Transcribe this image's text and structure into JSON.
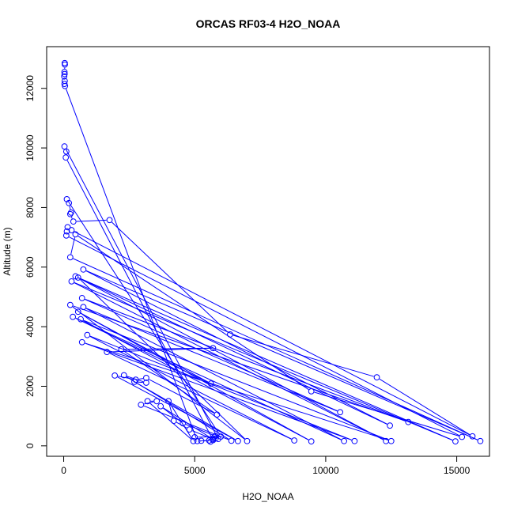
{
  "chart_data": {
    "type": "line",
    "title": "ORCAS RF03-4 H2O_NOAA",
    "xlabel": "H2O_NOAA",
    "ylabel": "Altitude (m)",
    "xlim": [
      -650,
      16250
    ],
    "ylim": [
      -350,
      13400
    ],
    "x_ticks": [
      0,
      5000,
      10000,
      15000
    ],
    "y_ticks": [
      0,
      2000,
      4000,
      6000,
      8000,
      10000,
      12000
    ],
    "x_tick_labels": [
      "0",
      "5000",
      "10000",
      "15000"
    ],
    "y_tick_labels": [
      "0",
      "2000",
      "4000",
      "6000",
      "8000",
      "10000",
      "12000"
    ],
    "grid": false,
    "marker": "open-circle",
    "series": [
      {
        "color": "#0000ff",
        "points": [
          [
            40,
            12850
          ],
          [
            45,
            12800
          ],
          [
            30,
            12550
          ],
          [
            35,
            12480
          ],
          [
            20,
            12400
          ],
          [
            40,
            12250
          ],
          [
            30,
            12150
          ],
          [
            50,
            12080
          ],
          [
            5100,
            160
          ],
          [
            5550,
            180
          ],
          [
            5600,
            140
          ],
          [
            5900,
            230
          ],
          [
            30,
            10050
          ],
          [
            100,
            9880
          ],
          [
            80,
            9680
          ],
          [
            5700,
            190
          ],
          [
            5250,
            170
          ],
          [
            5000,
            290
          ],
          [
            6000,
            310
          ],
          [
            120,
            8280
          ],
          [
            200,
            8150
          ],
          [
            280,
            7830
          ],
          [
            250,
            7780
          ],
          [
            370,
            7530
          ],
          [
            1750,
            7580
          ],
          [
            6350,
            3740
          ],
          [
            11950,
            2300
          ],
          [
            15600,
            320
          ],
          [
            300,
            7240
          ],
          [
            150,
            7340
          ],
          [
            120,
            7200
          ],
          [
            100,
            7060
          ],
          [
            15200,
            300
          ],
          [
            9450,
            1830
          ],
          [
            450,
            7100
          ],
          [
            250,
            6330
          ],
          [
            15900,
            160
          ],
          [
            750,
            5920
          ],
          [
            12450,
            680
          ],
          [
            450,
            5690
          ],
          [
            12300,
            160
          ],
          [
            300,
            5520
          ],
          [
            14950,
            150
          ],
          [
            550,
            5650
          ],
          [
            7000,
            160
          ],
          [
            250,
            4730
          ],
          [
            13150,
            800
          ],
          [
            700,
            4960
          ],
          [
            10550,
            1130
          ],
          [
            750,
            4660
          ],
          [
            10700,
            160
          ],
          [
            350,
            4330
          ],
          [
            5620,
            2090
          ],
          [
            550,
            4500
          ],
          [
            9450,
            150
          ],
          [
            650,
            4250
          ],
          [
            12500,
            160
          ],
          [
            700,
            3480
          ],
          [
            11100,
            160
          ],
          [
            900,
            3720
          ],
          [
            8800,
            180
          ],
          [
            1650,
            3150
          ],
          [
            5700,
            3280
          ],
          [
            2200,
            3240
          ],
          [
            5850,
            1050
          ],
          [
            3150,
            2280
          ],
          [
            2750,
            2220
          ],
          [
            1950,
            2360
          ],
          [
            6650,
            160
          ],
          [
            2700,
            2150
          ],
          [
            3150,
            2120
          ],
          [
            2300,
            2370
          ],
          [
            6400,
            170
          ],
          [
            2950,
            1380
          ],
          [
            3550,
            1500
          ],
          [
            3200,
            1500
          ],
          [
            4950,
            160
          ],
          [
            4000,
            1500
          ],
          [
            4200,
            840
          ],
          [
            4800,
            550
          ],
          [
            5700,
            220
          ],
          [
            3700,
            1330
          ],
          [
            4550,
            760
          ],
          [
            5800,
            330
          ],
          [
            5750,
            300
          ],
          [
            5800,
            250
          ]
        ]
      }
    ]
  }
}
